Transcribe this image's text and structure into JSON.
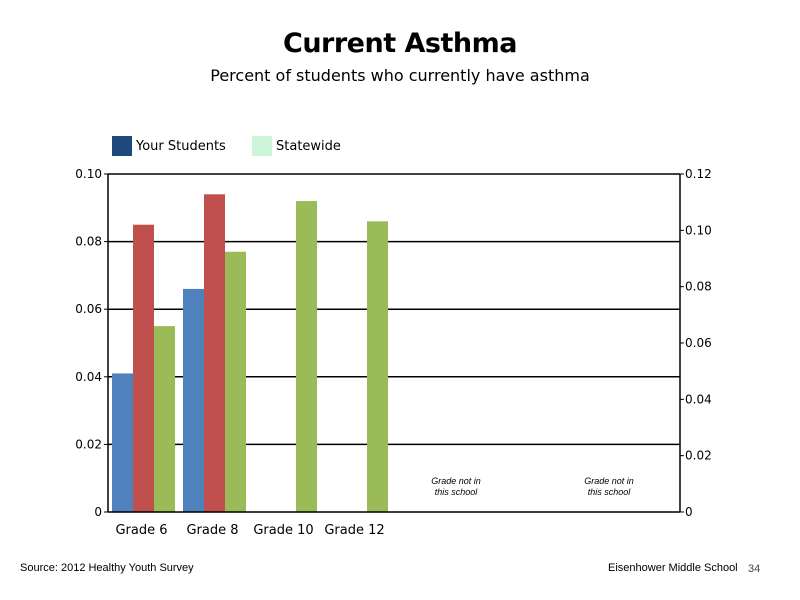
{
  "header": {
    "title": "Current Asthma",
    "subtitle": "Percent of students who currently have asthma"
  },
  "footer": {
    "source": "Source: 2012 Healthy Youth Survey",
    "school": "Eisenhower Middle  School",
    "slide_number": "34"
  },
  "chart_data": {
    "type": "bar",
    "title": "Current Asthma",
    "subtitle": "Percent of students who currently have asthma",
    "categories": [
      "Grade 6",
      "Grade 8",
      "Grade 10",
      "Grade 12"
    ],
    "series": [
      {
        "name": "Your Students",
        "color": "#4f81bd",
        "values": [
          0.041,
          0.066,
          null,
          null
        ],
        "axis": "left"
      },
      {
        "name": "",
        "color": "#c0504d",
        "values": [
          0.085,
          0.094,
          null,
          null
        ],
        "axis": "left"
      },
      {
        "name": "Statewide",
        "color": "#9bbb59",
        "values": [
          0.055,
          0.077,
          0.092,
          0.086
        ],
        "axis": "left"
      }
    ],
    "legend": [
      {
        "label": "Your Students",
        "color": "#1f497d"
      },
      {
        "label": "Statewide",
        "color": "#ccf5d9"
      }
    ],
    "left_axis": {
      "ylim": [
        0,
        0.1
      ],
      "ticks": [
        "0",
        "0.02",
        "0.04",
        "0.06",
        "0.08",
        "0.10"
      ]
    },
    "right_axis": {
      "ylim": [
        0,
        0.12
      ],
      "ticks": [
        "0",
        "0.02",
        "0.04",
        "0.06",
        "0.08",
        "0.10",
        "0.12"
      ]
    },
    "grid": true,
    "legend_position": "top-left",
    "annotations": [
      {
        "lines": [
          "Grade not in",
          "this school"
        ]
      },
      {
        "lines": [
          "Grade not in",
          "this school"
        ]
      }
    ]
  }
}
